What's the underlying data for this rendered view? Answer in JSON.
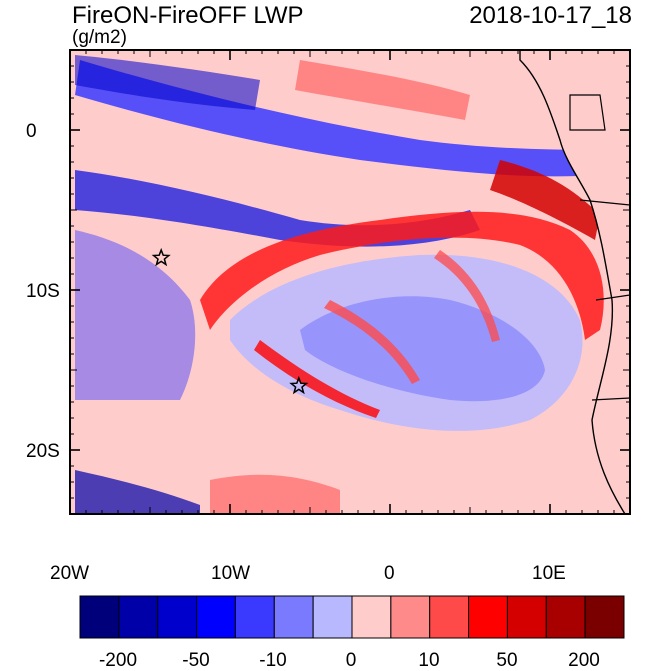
{
  "title_left": "FireON-FireOFF LWP",
  "title_right": "2018-10-17_18",
  "units": "(g/m2)",
  "axes": {
    "x_ticks": [
      "20W",
      "10W",
      "0",
      "10E"
    ],
    "y_ticks": [
      "0",
      "10S",
      "20S"
    ],
    "lon_range": [
      -20,
      15
    ],
    "lat_range": [
      -24,
      5
    ]
  },
  "markers": [
    {
      "label": "star",
      "lon": -14.3,
      "lat": -8.0
    },
    {
      "label": "star",
      "lon": -5.7,
      "lat": -16.0
    }
  ],
  "colorbar": {
    "labels": [
      "-200",
      "-50",
      "-10",
      "0",
      "10",
      "50",
      "200"
    ],
    "colors": [
      "#00007a",
      "#0000a8",
      "#0000cc",
      "#0000ff",
      "#3a3aff",
      "#7a7aff",
      "#b8b8ff",
      "#ffcccc",
      "#ff8a8a",
      "#ff4a4a",
      "#ff0000",
      "#d40000",
      "#a80000",
      "#7a0000"
    ]
  },
  "colors": {
    "background": "#ffcccc",
    "frame": "#000000",
    "coast": "#000000"
  }
}
